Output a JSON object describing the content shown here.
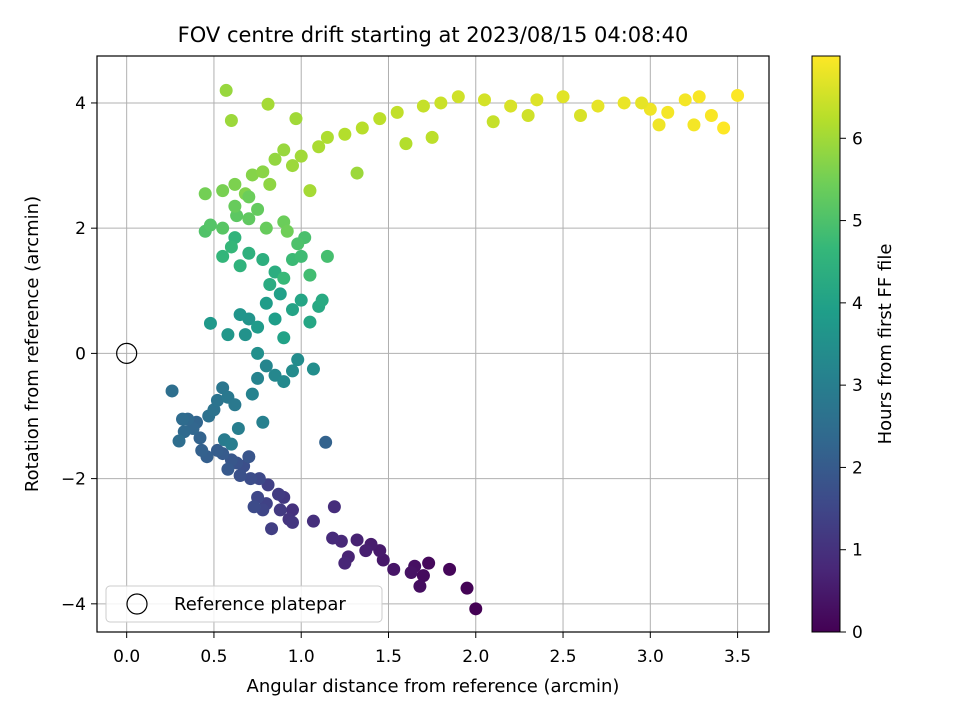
{
  "chart_data": {
    "type": "scatter",
    "title": "FOV centre drift starting at 2023/08/15 04:08:40",
    "xlabel": "Angular distance from reference (arcmin)",
    "ylabel": "Rotation from reference (arcmin)",
    "xlim": [
      -0.17,
      3.68
    ],
    "ylim": [
      -4.45,
      4.75
    ],
    "xticks": [
      0.0,
      0.5,
      1.0,
      1.5,
      2.0,
      2.5,
      3.0,
      3.5
    ],
    "xtick_labels": [
      "0.0",
      "0.5",
      "1.0",
      "1.5",
      "2.0",
      "2.5",
      "3.0",
      "3.5"
    ],
    "yticks": [
      -4,
      -2,
      0,
      2,
      4
    ],
    "ytick_labels": [
      "−4",
      "−2",
      "0",
      "2",
      "4"
    ],
    "grid": true,
    "legend": {
      "placement": "lower-left",
      "label": "Reference platepar"
    },
    "reference_point": {
      "x": 0.0,
      "y": 0.0
    },
    "colorbar": {
      "label": "Hours from first FF file",
      "min": 0,
      "max": 7.0,
      "ticks": [
        0,
        1,
        2,
        3,
        4,
        5,
        6
      ],
      "tick_labels": [
        "0",
        "1",
        "2",
        "3",
        "4",
        "5",
        "6"
      ],
      "colormap": "viridis",
      "colors": [
        "#440154",
        "#482878",
        "#3e4989",
        "#31688e",
        "#26828e",
        "#1f9e89",
        "#35b779",
        "#6ece58",
        "#b5de2b",
        "#fde725"
      ]
    },
    "series": [
      {
        "note_points_xyt": "each point: [x arcmin, rotation arcmin, hours]",
        "points": [
          [
            2.0,
            -4.08,
            0.0
          ],
          [
            1.95,
            -3.75,
            0.05
          ],
          [
            1.85,
            -3.45,
            0.1
          ],
          [
            1.73,
            -3.35,
            0.15
          ],
          [
            1.7,
            -3.55,
            0.2
          ],
          [
            1.68,
            -3.72,
            0.25
          ],
          [
            1.65,
            -3.4,
            0.3
          ],
          [
            1.63,
            -3.5,
            0.35
          ],
          [
            1.53,
            -3.45,
            0.4
          ],
          [
            1.47,
            -3.3,
            0.45
          ],
          [
            1.45,
            -3.15,
            0.5
          ],
          [
            1.4,
            -3.05,
            0.55
          ],
          [
            1.37,
            -3.15,
            0.6
          ],
          [
            1.32,
            -2.98,
            0.65
          ],
          [
            1.27,
            -3.25,
            0.7
          ],
          [
            1.25,
            -3.35,
            0.75
          ],
          [
            1.23,
            -3.0,
            0.8
          ],
          [
            1.18,
            -2.95,
            0.85
          ],
          [
            1.19,
            -2.45,
            0.9
          ],
          [
            1.07,
            -2.68,
            0.95
          ],
          [
            0.95,
            -2.5,
            1.0
          ],
          [
            0.93,
            -2.65,
            1.05
          ],
          [
            0.95,
            -2.7,
            1.1
          ],
          [
            0.9,
            -2.3,
            1.15
          ],
          [
            0.88,
            -2.5,
            1.2
          ],
          [
            0.87,
            -2.25,
            1.25
          ],
          [
            0.83,
            -2.8,
            1.3
          ],
          [
            0.81,
            -2.1,
            1.35
          ],
          [
            0.8,
            -2.4,
            1.4
          ],
          [
            0.78,
            -2.5,
            1.45
          ],
          [
            0.75,
            -2.3,
            1.5
          ],
          [
            0.76,
            -2.0,
            1.55
          ],
          [
            0.73,
            -2.45,
            1.6
          ],
          [
            0.71,
            -2.0,
            1.65
          ],
          [
            0.67,
            -1.8,
            1.7
          ],
          [
            0.65,
            -1.95,
            1.75
          ],
          [
            0.63,
            -1.75,
            1.8
          ],
          [
            0.7,
            -1.65,
            1.85
          ],
          [
            0.6,
            -1.7,
            1.9
          ],
          [
            0.58,
            -1.85,
            1.95
          ],
          [
            0.55,
            -1.6,
            2.0
          ],
          [
            0.52,
            -1.55,
            2.05
          ],
          [
            0.46,
            -1.65,
            2.1
          ],
          [
            0.43,
            -1.55,
            2.15
          ],
          [
            0.42,
            -1.35,
            2.2
          ],
          [
            0.4,
            -1.1,
            2.25
          ],
          [
            0.38,
            -1.2,
            2.3
          ],
          [
            0.35,
            -1.05,
            2.35
          ],
          [
            0.33,
            -1.25,
            2.4
          ],
          [
            0.32,
            -1.05,
            2.45
          ],
          [
            0.3,
            -1.4,
            2.5
          ],
          [
            0.26,
            -0.6,
            2.55
          ],
          [
            0.47,
            -1.0,
            2.6
          ],
          [
            0.5,
            -0.9,
            2.65
          ],
          [
            0.52,
            -0.75,
            2.7
          ],
          [
            0.55,
            -0.55,
            2.75
          ],
          [
            0.58,
            -0.7,
            2.8
          ],
          [
            0.62,
            -0.82,
            2.85
          ],
          [
            0.56,
            -1.38,
            2.9
          ],
          [
            0.6,
            -1.45,
            2.95
          ],
          [
            0.64,
            -1.2,
            3.0
          ],
          [
            0.78,
            -1.1,
            3.05
          ],
          [
            0.72,
            -0.65,
            3.1
          ],
          [
            0.75,
            -0.4,
            3.15
          ],
          [
            0.8,
            -0.2,
            3.2
          ],
          [
            0.85,
            -0.35,
            3.25
          ],
          [
            0.9,
            -0.45,
            3.3
          ],
          [
            0.95,
            -0.28,
            3.35
          ],
          [
            0.98,
            -0.1,
            3.4
          ],
          [
            1.07,
            -0.25,
            3.45
          ],
          [
            0.75,
            0.0,
            3.5
          ],
          [
            0.68,
            0.3,
            3.55
          ],
          [
            0.7,
            0.55,
            3.6
          ],
          [
            0.65,
            0.62,
            3.65
          ],
          [
            0.58,
            0.3,
            3.7
          ],
          [
            0.48,
            0.48,
            3.75
          ],
          [
            0.75,
            0.42,
            3.8
          ],
          [
            0.8,
            0.8,
            3.85
          ],
          [
            0.85,
            0.55,
            3.9
          ],
          [
            0.88,
            0.95,
            3.95
          ],
          [
            0.9,
            0.25,
            4.0
          ],
          [
            0.95,
            0.7,
            4.05
          ],
          [
            1.0,
            0.85,
            4.1
          ],
          [
            1.05,
            0.5,
            4.15
          ],
          [
            1.1,
            0.75,
            4.2
          ],
          [
            1.12,
            0.85,
            4.25
          ],
          [
            0.82,
            1.1,
            4.3
          ],
          [
            0.85,
            1.3,
            4.35
          ],
          [
            0.78,
            1.5,
            4.4
          ],
          [
            0.7,
            1.6,
            4.45
          ],
          [
            0.65,
            1.4,
            4.5
          ],
          [
            0.62,
            1.85,
            4.55
          ],
          [
            0.55,
            1.55,
            4.6
          ],
          [
            0.6,
            1.7,
            4.65
          ],
          [
            0.9,
            1.2,
            4.7
          ],
          [
            0.95,
            1.5,
            4.75
          ],
          [
            1.0,
            1.55,
            4.8
          ],
          [
            1.05,
            1.25,
            4.85
          ],
          [
            1.15,
            1.55,
            4.9
          ],
          [
            1.02,
            1.85,
            4.95
          ],
          [
            0.98,
            1.75,
            5.0
          ],
          [
            0.45,
            1.95,
            5.05
          ],
          [
            0.48,
            2.05,
            5.1
          ],
          [
            0.55,
            2.0,
            5.15
          ],
          [
            0.63,
            2.2,
            5.2
          ],
          [
            0.7,
            2.15,
            5.25
          ],
          [
            0.75,
            2.3,
            5.3
          ],
          [
            0.8,
            2.0,
            5.35
          ],
          [
            0.9,
            2.1,
            5.4
          ],
          [
            0.92,
            1.95,
            5.45
          ],
          [
            0.45,
            2.55,
            5.5
          ],
          [
            0.55,
            2.6,
            5.55
          ],
          [
            0.62,
            2.7,
            5.6
          ],
          [
            0.68,
            2.55,
            5.65
          ],
          [
            0.72,
            2.85,
            5.7
          ],
          [
            0.78,
            2.9,
            5.75
          ],
          [
            0.82,
            2.7,
            5.8
          ],
          [
            0.85,
            3.1,
            5.85
          ],
          [
            0.9,
            3.25,
            5.9
          ],
          [
            0.95,
            3.0,
            5.95
          ],
          [
            1.0,
            3.15,
            6.0
          ],
          [
            1.05,
            2.6,
            6.05
          ],
          [
            1.1,
            3.3,
            6.1
          ],
          [
            1.15,
            3.45,
            6.15
          ],
          [
            1.25,
            3.5,
            6.2
          ],
          [
            1.35,
            3.6,
            6.25
          ],
          [
            1.45,
            3.75,
            6.3
          ],
          [
            1.55,
            3.85,
            6.35
          ],
          [
            1.7,
            3.95,
            6.4
          ],
          [
            1.8,
            4.0,
            6.45
          ],
          [
            1.9,
            4.1,
            6.5
          ],
          [
            2.05,
            4.05,
            6.55
          ],
          [
            2.2,
            3.95,
            6.6
          ],
          [
            2.35,
            4.05,
            6.65
          ],
          [
            2.5,
            4.1,
            6.7
          ],
          [
            2.7,
            3.95,
            6.75
          ],
          [
            2.85,
            4.0,
            6.8
          ],
          [
            3.0,
            3.9,
            6.85
          ],
          [
            3.2,
            4.05,
            6.9
          ],
          [
            3.35,
            3.8,
            6.95
          ],
          [
            3.42,
            3.6,
            7.0
          ],
          [
            3.5,
            4.12,
            6.98
          ],
          [
            3.28,
            4.1,
            6.95
          ],
          [
            3.1,
            3.85,
            6.9
          ],
          [
            0.57,
            4.2,
            5.9
          ],
          [
            0.81,
            3.98,
            6.05
          ],
          [
            0.6,
            3.72,
            5.95
          ],
          [
            0.97,
            3.75,
            6.0
          ],
          [
            1.32,
            2.88,
            5.95
          ],
          [
            1.14,
            -1.42,
            2.2
          ],
          [
            0.7,
            2.5,
            5.4
          ],
          [
            0.62,
            2.35,
            5.35
          ],
          [
            1.6,
            3.35,
            6.2
          ],
          [
            1.75,
            3.45,
            6.3
          ],
          [
            2.1,
            3.7,
            6.4
          ],
          [
            2.3,
            3.8,
            6.5
          ],
          [
            2.6,
            3.8,
            6.6
          ],
          [
            2.95,
            4.0,
            6.75
          ],
          [
            3.05,
            3.65,
            6.85
          ],
          [
            3.25,
            3.65,
            6.9
          ]
        ]
      }
    ]
  }
}
